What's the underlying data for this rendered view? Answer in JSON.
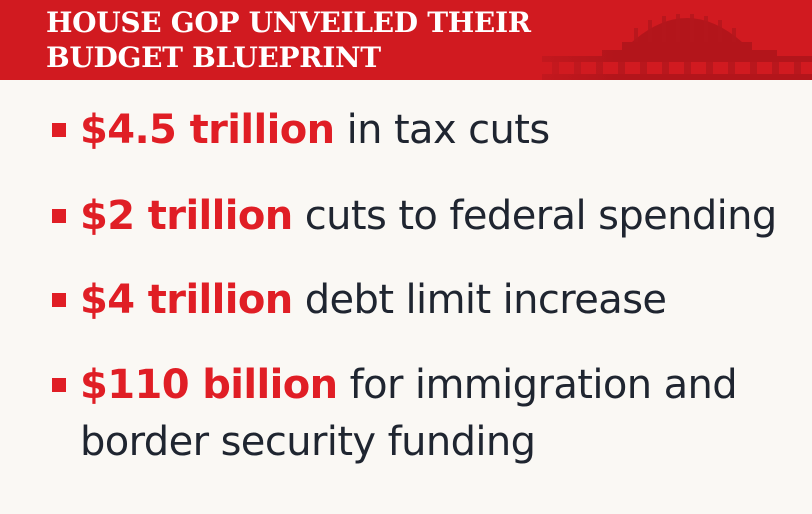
{
  "header": {
    "title_line1": "HOUSE GOP UNVEILED THEIR",
    "title_line2": "BUDGET BLUEPRINT",
    "accent_color": "#d11a20"
  },
  "items": [
    {
      "amount": "$4.5 trillion",
      "text": " in tax cuts"
    },
    {
      "amount": "$2 trillion",
      "text": " cuts to federal spending"
    },
    {
      "amount": "$4 trillion",
      "text": " debt limit increase"
    },
    {
      "amount": "$110 billion",
      "text": " for immigration and",
      "text_line2": "border security funding"
    }
  ],
  "colors": {
    "amount": "#e01e25",
    "body_text": "#1f2530",
    "background": "#faf8f4"
  },
  "icons": {
    "header_background": "capitol-building-icon",
    "bullet": "square-bullet-icon"
  }
}
